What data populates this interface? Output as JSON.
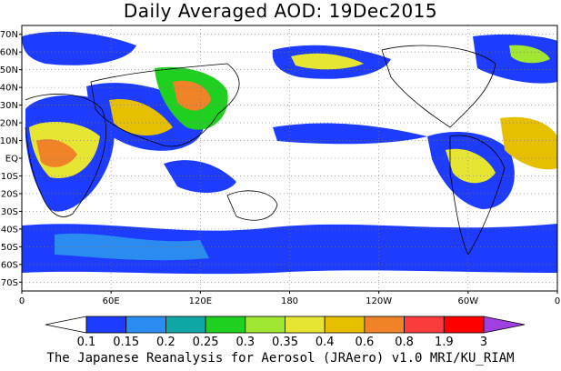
{
  "title": "Daily Averaged AOD: 19Dec2015",
  "credit": "The Japanese Reanalysis for Aerosol (JRAero) v1.0 MRI/KU_RIAM",
  "map": {
    "lat_labels": [
      "70N",
      "60N",
      "50N",
      "40N",
      "30N",
      "20N",
      "10N",
      "EQ",
      "10S",
      "20S",
      "30S",
      "40S",
      "50S",
      "60S",
      "70S"
    ],
    "lon_labels": [
      "0",
      "60E",
      "120E",
      "180",
      "120W",
      "60W",
      "0"
    ],
    "grid": true,
    "grid_style": "dotted"
  },
  "colorbar": {
    "labels": [
      "0.1",
      "0.15",
      "0.2",
      "0.25",
      "0.3",
      "0.35",
      "0.4",
      "0.6",
      "0.8",
      "1.9",
      "3"
    ],
    "colors": [
      "#ffffff",
      "#1e3cff",
      "#2a8cf0",
      "#11a6a6",
      "#20d020",
      "#a0e632",
      "#e6e632",
      "#e6c000",
      "#f08228",
      "#fa3c3c",
      "#ff0000",
      "#a040e0"
    ],
    "extend": "both"
  }
}
